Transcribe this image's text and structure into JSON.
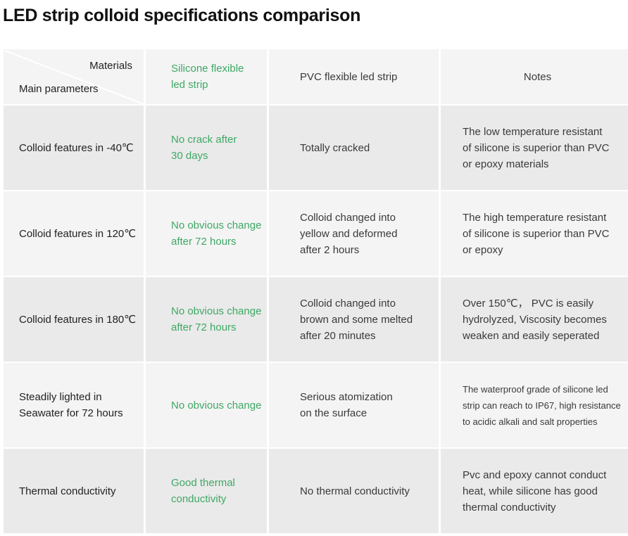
{
  "title": "LED strip colloid specifications comparison",
  "header": {
    "materials": "Materials",
    "main_parameters": "Main parameters",
    "col2": [
      "Silicone flexible",
      "led strip"
    ],
    "col3": "PVC flexible led strip",
    "col4": "Notes"
  },
  "rows": [
    {
      "param": [
        "Colloid features in -40℃"
      ],
      "silicone": [
        "No crack after",
        "30 days"
      ],
      "pvc": [
        "Totally cracked"
      ],
      "notes": [
        "The low temperature resistant",
        "of silicone is superior than PVC",
        "or epoxy materials"
      ]
    },
    {
      "param": [
        "Colloid features in 120℃"
      ],
      "silicone": [
        "No obvious change",
        "after 72 hours"
      ],
      "pvc": [
        "Colloid changed into",
        "yellow and deformed",
        "after 2 hours"
      ],
      "notes": [
        "The high temperature resistant",
        "of silicone is superior than  PVC",
        "or epoxy"
      ]
    },
    {
      "param": [
        "Colloid features in 180℃"
      ],
      "silicone": [
        "No obvious change",
        "after 72 hours"
      ],
      "pvc": [
        "Colloid changed into",
        "brown and some melted",
        "after 20 minutes"
      ],
      "notes": [
        "Over 150℃， PVC is easily",
        "hydrolyzed, Viscosity becomes",
        "weaken and easily seperated"
      ]
    },
    {
      "param": [
        "Steadily lighted in",
        "Seawater for 72 hours"
      ],
      "silicone": [
        "No obvious change"
      ],
      "pvc": [
        "Serious atomization",
        "on the surface"
      ],
      "notes": [
        "The waterproof grade of silicone led",
        "strip can reach to IP67, high resistance",
        "to acidic alkali and salt properties"
      ]
    },
    {
      "param": [
        "Thermal conductivity"
      ],
      "silicone": [
        "Good thermal",
        "conductivity"
      ],
      "pvc": [
        "No thermal conductivity"
      ],
      "notes": [
        "Pvc and epoxy cannot conduct",
        "heat, while silicone has good",
        "thermal conductivity"
      ]
    }
  ],
  "colors": {
    "green": "#3fa865",
    "row_light": "#f4f4f4",
    "row_dark": "#eaeaea"
  }
}
